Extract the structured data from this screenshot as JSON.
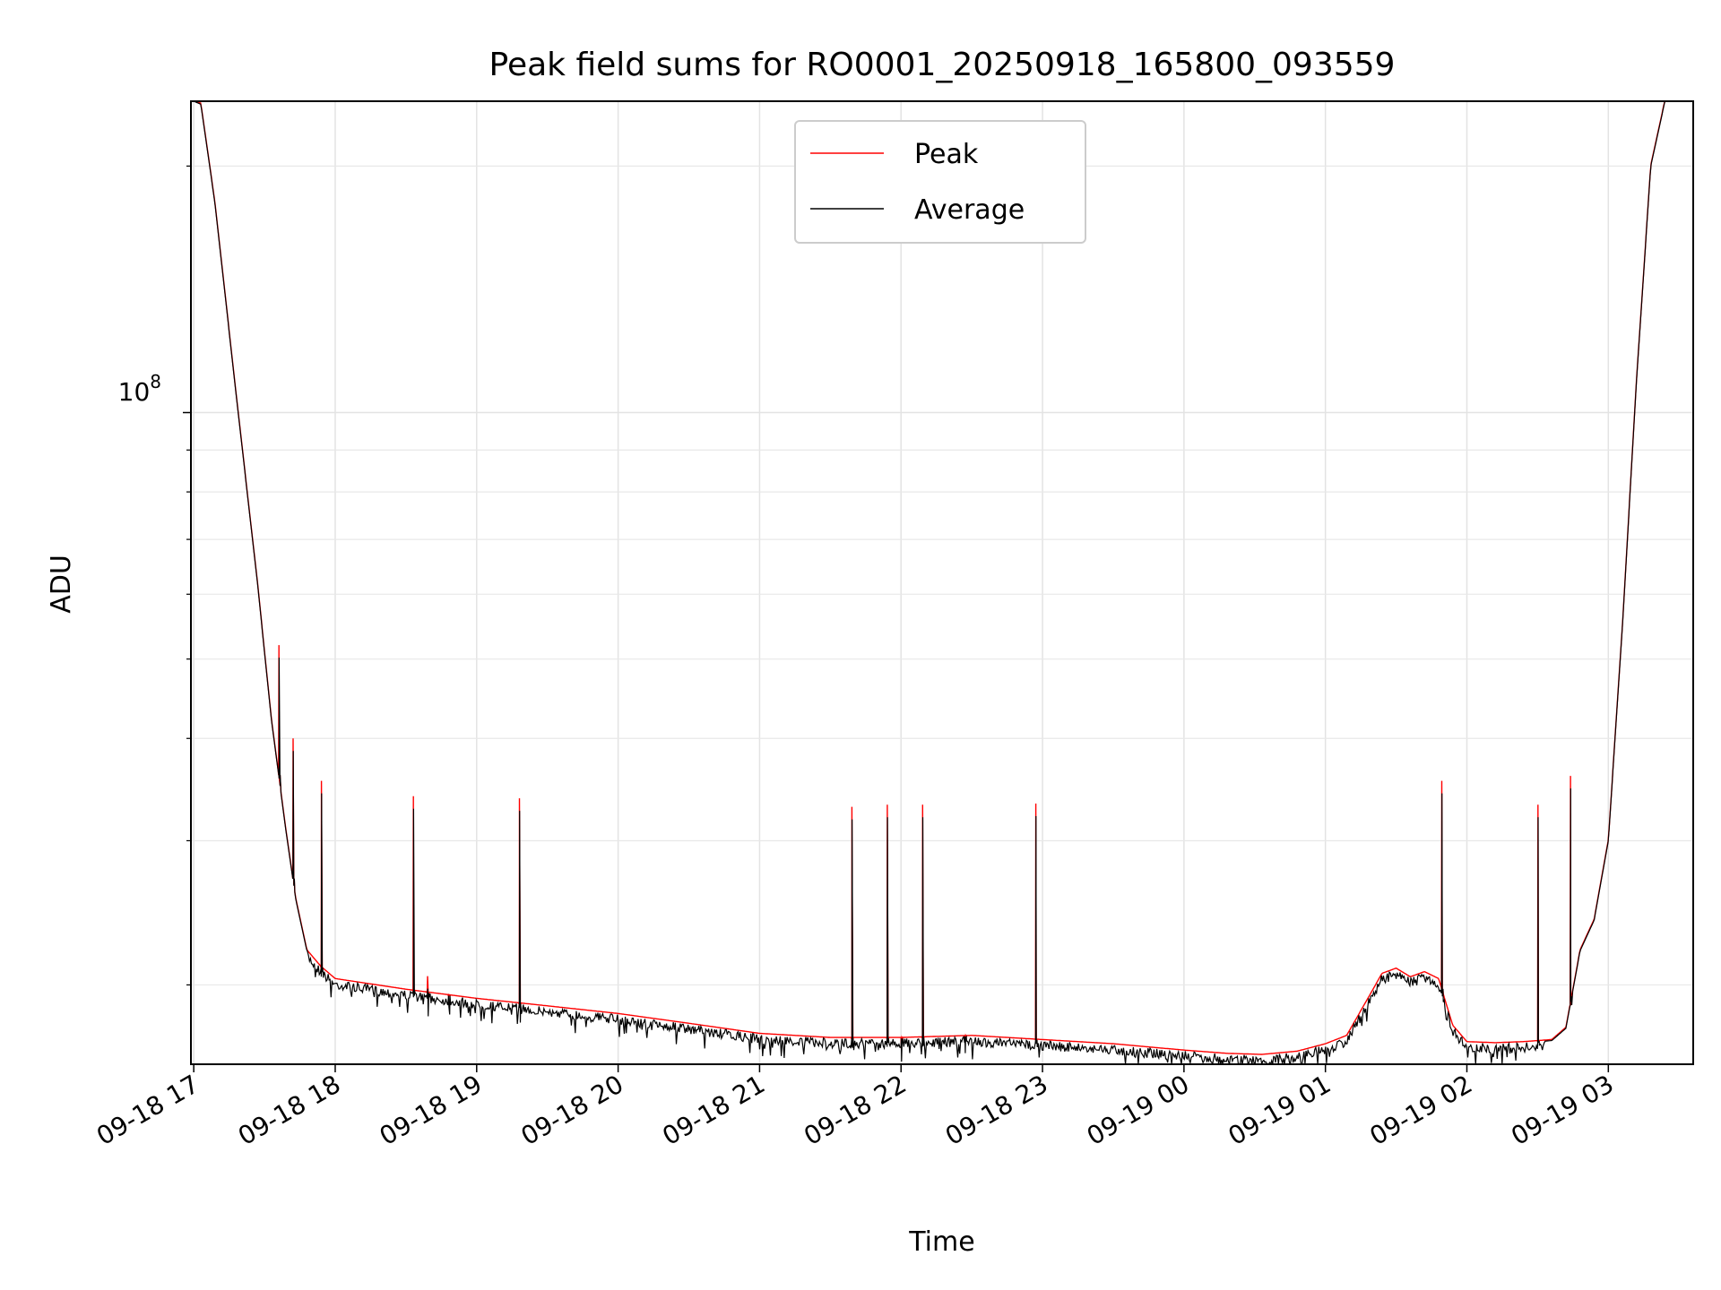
{
  "chart_data": {
    "type": "line",
    "title": "Peak field sums for RO0001_20250918_165800_093559",
    "xlabel": "Time",
    "ylabel": "ADU",
    "yscale": "log",
    "ylim": [
      16000000,
      240000000
    ],
    "y_major_tick": {
      "value": 100000000,
      "base": "10",
      "exponent": "8"
    },
    "y_minor_ticks": [
      20000000,
      30000000,
      40000000,
      50000000,
      60000000,
      70000000,
      80000000,
      90000000,
      200000000
    ],
    "xlim_hours": [
      -0.02,
      10.6
    ],
    "x_tick_labels": [
      "09-18 17",
      "09-18 18",
      "09-18 19",
      "09-18 20",
      "09-18 21",
      "09-18 22",
      "09-18 23",
      "09-19 00",
      "09-19 01",
      "09-19 02",
      "09-19 03"
    ],
    "x_tick_hours": [
      0,
      1,
      2,
      3,
      4,
      5,
      6,
      7,
      8,
      9,
      10
    ],
    "grid": true,
    "legend": {
      "position": "top-center",
      "entries": [
        {
          "name": "Peak",
          "color": "#ff0000"
        },
        {
          "name": "Average",
          "color": "#000000"
        }
      ]
    },
    "series": [
      {
        "name": "Peak",
        "color": "#ff0000"
      },
      {
        "name": "Average",
        "color": "#000000"
      }
    ],
    "baseline_hours": [
      0.0,
      0.05,
      0.15,
      0.3,
      0.45,
      0.55,
      0.65,
      0.72,
      0.8,
      0.9,
      1.0,
      1.5,
      2.0,
      2.5,
      3.0,
      3.5,
      4.0,
      4.5,
      5.0,
      5.5,
      6.0,
      6.5,
      7.0,
      7.3,
      7.55,
      7.8,
      8.0,
      8.15,
      8.3,
      8.4,
      8.5,
      8.6,
      8.7,
      8.8,
      8.9,
      9.0,
      9.2,
      9.4,
      9.6,
      9.7,
      9.8,
      9.9,
      10.0,
      10.1,
      10.2,
      10.3,
      10.4
    ],
    "baseline_values": [
      240000000,
      238000000,
      180000000,
      105000000,
      62000000,
      42000000,
      31000000,
      25500000,
      22000000,
      21000000,
      20300000,
      19700000,
      19200000,
      18800000,
      18400000,
      17900000,
      17400000,
      17200000,
      17200000,
      17300000,
      17100000,
      16900000,
      16600000,
      16450000,
      16400000,
      16550000,
      16900000,
      17300000,
      19200000,
      20600000,
      20900000,
      20400000,
      20700000,
      20300000,
      17800000,
      17000000,
      16950000,
      17000000,
      17100000,
      17700000,
      22000000,
      24000000,
      30000000,
      55000000,
      110000000,
      200000000,
      240000000
    ],
    "spike_hours": [
      0.6,
      0.7,
      0.9,
      1.55,
      1.65,
      1.8,
      2.3,
      4.65,
      4.9,
      5.0,
      5.15,
      5.45,
      5.95,
      8.82,
      9.5,
      9.73
    ],
    "spike_values": [
      52000000,
      40000000,
      35500000,
      34000000,
      20500000,
      19500000,
      33800000,
      33000000,
      33200000,
      16700000,
      33200000,
      17100000,
      33300000,
      35500000,
      33200000,
      36000000
    ]
  }
}
